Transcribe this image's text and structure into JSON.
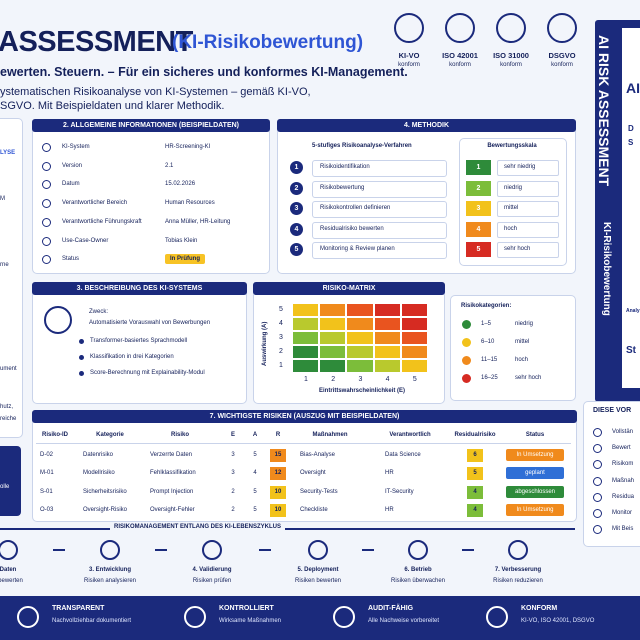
{
  "header": {
    "title": "ASSESSMENT",
    "title_paren": "(KI-Risikobewertung)",
    "tagline": "ewerten. Steuern. – Für ein sicheres und konformes KI-Management.",
    "description": [
      "ystematischen Risikoanalyse von KI-Systemen – gemäß KI-VO,",
      "SGVO. Mit Beispieldaten und klarer Methodik."
    ]
  },
  "badges": [
    {
      "label": "KI-VO",
      "sub": "konform"
    },
    {
      "label": "ISO 42001",
      "sub": "konform"
    },
    {
      "label": "ISO 31000",
      "sub": "konform"
    },
    {
      "label": "DSGVO",
      "sub": "konform"
    }
  ],
  "book": {
    "spine_title": "AI RISK ASSESSMENT",
    "spine_subtitle": "KI-Risikobewertung",
    "cover": [
      "AI",
      "D",
      "S",
      "Analys",
      "St"
    ]
  },
  "left_panel": {
    "items": [
      "LYSE",
      "M",
      "rne",
      "ument",
      "hutz,",
      "reiche"
    ],
    "box": "olle"
  },
  "general_info": {
    "title": "2. ALLGEMEINE INFORMATIONEN (BEISPIELDATEN)",
    "rows": [
      {
        "label": "KI-System",
        "value": "HR-Screening-KI"
      },
      {
        "label": "Version",
        "value": "2.1"
      },
      {
        "label": "Datum",
        "value": "15.02.2026"
      },
      {
        "label": "Verantwortlicher Bereich",
        "value": "Human Resources"
      },
      {
        "label": "Verantwortliche Führungskraft",
        "value": "Anna Müller, HR-Leitung"
      },
      {
        "label": "Use-Case-Owner",
        "value": "Tobias Klein"
      },
      {
        "label": "Status",
        "value": "In Prüfung"
      }
    ]
  },
  "methodology": {
    "title": "4. METHODIK",
    "subtitle": "5-stufiges Risikoanalyse-Verfahren",
    "steps": [
      "Risikoidentifikation",
      "Risikobewertung",
      "Risikokontrollen definieren",
      "Residualrisiko bewerten",
      "Monitoring & Review planen"
    ],
    "scale_title": "Bewertungsskala",
    "scale": [
      {
        "level": 1,
        "label": "sehr niedrig",
        "color": "#2e8b3a"
      },
      {
        "level": 2,
        "label": "niedrig",
        "color": "#7cbd3a"
      },
      {
        "level": 3,
        "label": "mittel",
        "color": "#f2c21b"
      },
      {
        "level": 4,
        "label": "hoch",
        "color": "#f08a1c"
      },
      {
        "level": 5,
        "label": "sehr hoch",
        "color": "#d62b22"
      }
    ]
  },
  "system_description": {
    "title": "3. BESCHREIBUNG DES KI-SYSTEMS",
    "purpose_label": "Zweck:",
    "purpose": "Automatisierte Vorauswahl von Bewerbungen",
    "bullets": [
      "Transformer-basiertes Sprachmodell",
      "Klassifikation in drei Kategorien",
      "Score-Berechnung mit Explainability-Modul"
    ]
  },
  "risk_matrix": {
    "title": "RISIKO-MATRIX",
    "y_label": "Auswirkung (A)",
    "x_label": "Eintrittswahrscheinlichkeit (E)",
    "y_ticks": [
      5,
      4,
      3,
      2,
      1
    ],
    "x_ticks": [
      1,
      2,
      3,
      4,
      5
    ],
    "categories_title": "Risikokategorien:",
    "categories": [
      {
        "range": "1–5",
        "label": "niedrig",
        "color": "#2e8b3a"
      },
      {
        "range": "6–10",
        "label": "mittel",
        "color": "#f2c21b"
      },
      {
        "range": "11–15",
        "label": "hoch",
        "color": "#f08a1c"
      },
      {
        "range": "16–25",
        "label": "sehr hoch",
        "color": "#d62b22"
      }
    ]
  },
  "risks": {
    "title": "7. WICHTIGSTE RISIKEN (AUSZUG MIT BEISPIELDATEN)",
    "columns": [
      "Risiko-ID",
      "Kategorie",
      "Risiko",
      "E",
      "A",
      "R",
      "Maßnahmen",
      "Verantwortlich",
      "Residualrisiko",
      "Status"
    ],
    "rows": [
      {
        "id": "D-02",
        "category": "Datenrisiko",
        "risk": "Verzerrte Daten",
        "e": 3,
        "a": 5,
        "r": 15,
        "r_color": "#f08a1c",
        "measure": "Bias-Analyse",
        "owner": "Data Science",
        "residual": 6,
        "residual_color": "#f2c21b",
        "status": "In Umsetzung",
        "status_color": "#f08a1c"
      },
      {
        "id": "M-01",
        "category": "Modellrisiko",
        "risk": "Fehlklassifikation",
        "e": 3,
        "a": 4,
        "r": 12,
        "r_color": "#f08a1c",
        "measure": "Oversight",
        "owner": "HR",
        "residual": 5,
        "residual_color": "#f2c21b",
        "status": "geplant",
        "status_color": "#2f6fd6"
      },
      {
        "id": "S-01",
        "category": "Sicherheitsrisiko",
        "risk": "Prompt Injection",
        "e": 2,
        "a": 5,
        "r": 10,
        "r_color": "#f2c21b",
        "measure": "Security-Tests",
        "owner": "IT-Security",
        "residual": 4,
        "residual_color": "#7cbd3a",
        "status": "abgeschlossen",
        "status_color": "#2e8b3a"
      },
      {
        "id": "O-03",
        "category": "Oversight-Risiko",
        "risk": "Oversight-Fehler",
        "e": 2,
        "a": 5,
        "r": 10,
        "r_color": "#f2c21b",
        "measure": "Checkliste",
        "owner": "HR",
        "residual": 4,
        "residual_color": "#7cbd3a",
        "status": "In Umsetzung",
        "status_color": "#f08a1c"
      }
    ]
  },
  "lifecycle": {
    "title": "RISIKOMANAGEMENT ENTLANG DES KI-LEBENSZYKLUS",
    "steps": [
      {
        "title": "Daten",
        "sub": "n bewerten"
      },
      {
        "title": "3. Entwicklung",
        "sub": "Risiken analysieren"
      },
      {
        "title": "4. Validierung",
        "sub": "Risiken prüfen"
      },
      {
        "title": "5. Deployment",
        "sub": "Risiken bewerten"
      },
      {
        "title": "6. Betrieb",
        "sub": "Risiken überwachen"
      },
      {
        "title": "7. Verbesserung",
        "sub": "Risiken reduzieren"
      }
    ]
  },
  "side_panel": {
    "title": "DIESE VOR",
    "items": [
      "Vollstän",
      "Bewert",
      "Risikom",
      "Maßnah",
      "Residua",
      "Monitor",
      "Mit Beis"
    ]
  },
  "footer": [
    {
      "title": "TRANSPARENT",
      "sub": "Nachvollziehbar dokumentiert"
    },
    {
      "title": "KONTROLLIERT",
      "sub": "Wirksame Maßnahmen"
    },
    {
      "title": "AUDIT-FÄHIG",
      "sub": "Alle Nachweise vorbereitet"
    },
    {
      "title": "KONFORM",
      "sub": "KI-VO, ISO 42001, DSGVO"
    }
  ]
}
